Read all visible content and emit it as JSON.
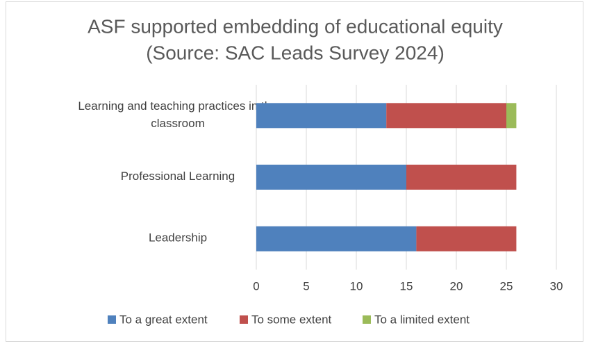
{
  "chart_data": {
    "type": "stacked-barh",
    "title": "ASF supported embedding of educational equity",
    "subtitle": "(Source: SAC Leads Survey 2024)",
    "categories": [
      "Learning and teaching practices in the classroom",
      "Professional Learning",
      "Leadership"
    ],
    "series": [
      {
        "name": "To a great extent",
        "color": "#4f81bd",
        "values": [
          13,
          15,
          16
        ]
      },
      {
        "name": "To some extent",
        "color": "#c0504d",
        "values": [
          12,
          11,
          10
        ]
      },
      {
        "name": "To a limited extent",
        "color": "#9bbb59",
        "values": [
          1,
          0,
          0
        ]
      }
    ],
    "xlim": [
      0,
      30
    ],
    "xticks": [
      0,
      5,
      10,
      15,
      20,
      25,
      30
    ],
    "grid": true,
    "legend": "bottom"
  }
}
